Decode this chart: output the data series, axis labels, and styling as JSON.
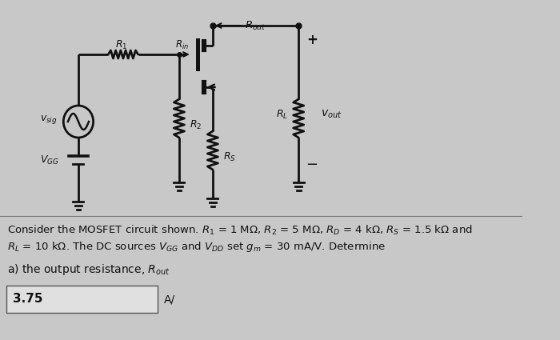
{
  "bg_color": "#c8c8c8",
  "text_color": "#111111",
  "circuit_color": "#111111",
  "problem_line1": "Consider the MOSFET circuit shown. $R_1$ = 1 M$\\Omega$, $R_2$ = 5 M$\\Omega$, $R_D$ = 4 k$\\Omega$, $R_S$ = 1.5 k$\\Omega$ and",
  "problem_line2": "$R_L$ = 10 k$\\Omega$. The DC sources $V_{GG}$ and $V_{DD}$ set $g_m$ = 30 mA/V. Determine",
  "question_text": "a) the output resistance, $R_{out}$",
  "answer_value": "3.75",
  "answer_label": "A/",
  "font_size_problem": 9.5,
  "font_size_question": 10.0,
  "font_size_answer": 11
}
